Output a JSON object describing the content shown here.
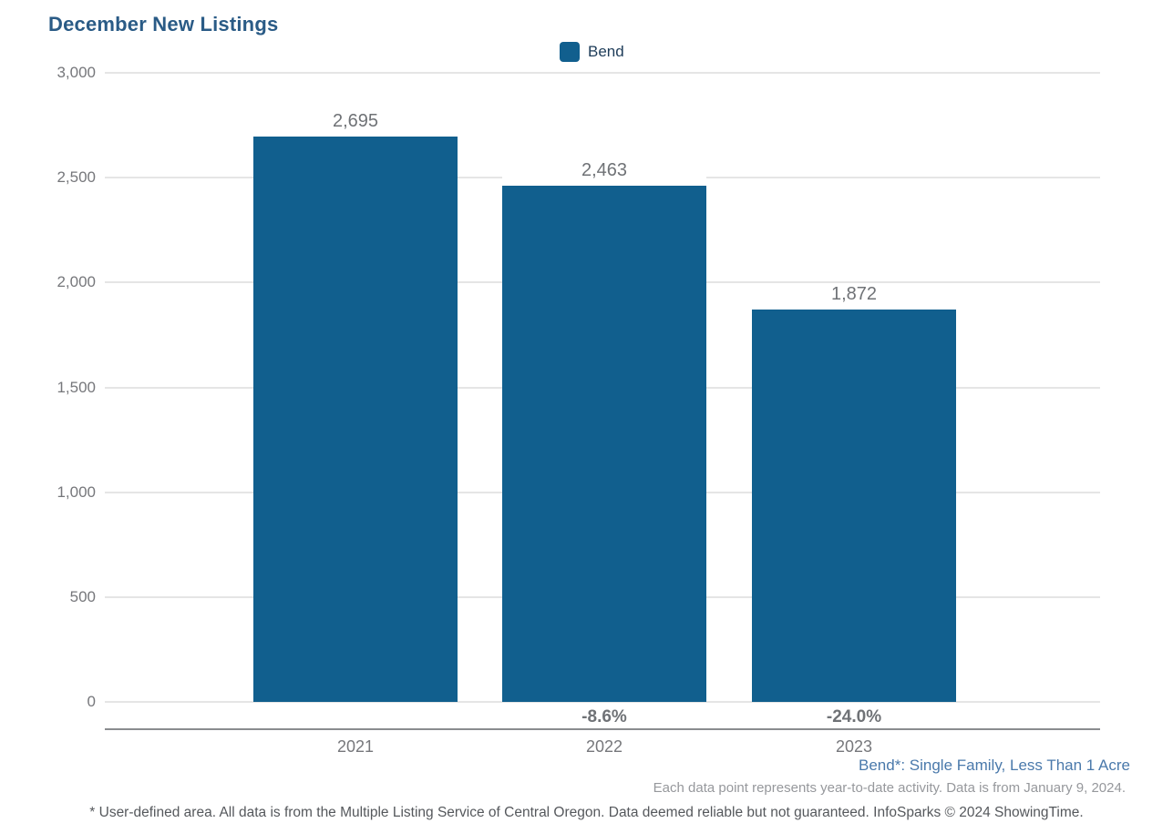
{
  "chart_data": {
    "type": "bar",
    "title": "December New Listings",
    "categories": [
      "2021",
      "2022",
      "2023"
    ],
    "series": [
      {
        "name": "Bend",
        "values": [
          2695,
          2463,
          1872
        ],
        "color": "#115F8E"
      }
    ],
    "bar_value_labels": [
      "2,695",
      "2,463",
      "1,872"
    ],
    "pct_change_labels": [
      null,
      "-8.6%",
      "-24.0%"
    ],
    "y_ticks": [
      {
        "label": "3,000",
        "value": 3000
      },
      {
        "label": "2,500",
        "value": 2500
      },
      {
        "label": "2,000",
        "value": 2000
      },
      {
        "label": "1,500",
        "value": 1500
      },
      {
        "label": "1,000",
        "value": 1000
      },
      {
        "label": "500",
        "value": 500
      },
      {
        "label": "0",
        "value": 0
      }
    ],
    "ylim": [
      0,
      3000
    ],
    "grid": true,
    "legend_position": "top-center",
    "xlabel": "",
    "ylabel": ""
  },
  "legend": {
    "items": [
      {
        "label": "Bend",
        "color": "#115F8E"
      }
    ]
  },
  "annotations": {
    "series_note": "Bend*: Single Family, Less Than 1 Acre",
    "data_note": "Each data point represents year-to-date activity. Data is from January 9, 2024.",
    "footnote": "* User-defined area. All data is from the Multiple Listing Service of Central Oregon. Data deemed reliable but not guaranteed. InfoSparks © 2024 ShowingTime."
  },
  "colors": {
    "bar": "#115F8E",
    "title": "#2A5B86",
    "legend_label": "#1E3C59",
    "series_note": "#4A79AB",
    "tick_label": "#76777B",
    "value_label": "#6F7276",
    "data_note": "#96989C",
    "footnote": "#55585C",
    "gridline": "#E5E5E5",
    "axis_line": "#8A8C8F"
  }
}
